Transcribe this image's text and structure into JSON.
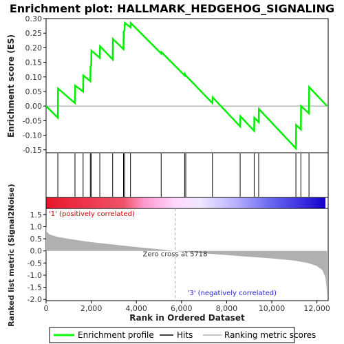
{
  "chart_data": {
    "type": "line",
    "title": "Enrichment plot: HALLMARK_HEDGEHOG_SIGNALING",
    "xlabel": "Rank in Ordered Dataset",
    "xlim": [
      0,
      12500
    ],
    "xticks": [
      0,
      2000,
      4000,
      6000,
      8000,
      10000,
      12000
    ],
    "xtick_labels": [
      "0",
      "2,000",
      "4,000",
      "6,000",
      "8,000",
      "10,000",
      "12,000"
    ],
    "es_panel": {
      "ylabel": "Enrichment score (ES)",
      "ylim": [
        -0.16,
        0.3
      ],
      "yticks": [
        -0.15,
        -0.1,
        -0.05,
        0.0,
        0.05,
        0.1,
        0.15,
        0.2,
        0.25,
        0.3
      ],
      "ytick_labels": [
        "-0.15",
        "-0.10",
        "-0.05",
        "0.00",
        "0.05",
        "0.10",
        "0.15",
        "0.20",
        "0.25",
        "0.30"
      ],
      "series_name": "Enrichment profile",
      "color": "#00ff00",
      "points": [
        [
          0,
          0.0
        ],
        [
          520,
          -0.04
        ],
        [
          530,
          0.06
        ],
        [
          1280,
          0.01
        ],
        [
          1290,
          0.07
        ],
        [
          1640,
          0.05
        ],
        [
          1650,
          0.105
        ],
        [
          1960,
          0.085
        ],
        [
          1970,
          0.135
        ],
        [
          2000,
          0.14
        ],
        [
          2010,
          0.19
        ],
        [
          2380,
          0.165
        ],
        [
          2390,
          0.205
        ],
        [
          2950,
          0.16
        ],
        [
          2960,
          0.23
        ],
        [
          3430,
          0.195
        ],
        [
          3440,
          0.255
        ],
        [
          3480,
          0.26
        ],
        [
          3490,
          0.285
        ],
        [
          3740,
          0.27
        ],
        [
          3750,
          0.285
        ],
        [
          5100,
          0.18
        ],
        [
          5110,
          0.185
        ],
        [
          6140,
          0.105
        ],
        [
          6150,
          0.11
        ],
        [
          6190,
          0.105
        ],
        [
          7370,
          0.01
        ],
        [
          7380,
          0.03
        ],
        [
          8600,
          -0.07
        ],
        [
          8610,
          -0.035
        ],
        [
          9220,
          -0.085
        ],
        [
          9230,
          -0.04
        ],
        [
          9420,
          -0.055
        ],
        [
          9430,
          -0.01
        ],
        [
          11070,
          -0.145
        ],
        [
          11080,
          -0.065
        ],
        [
          11290,
          -0.08
        ],
        [
          11300,
          0.0
        ],
        [
          11650,
          -0.025
        ],
        [
          11660,
          0.065
        ],
        [
          12450,
          0.0
        ]
      ]
    },
    "hits": [
      520,
      1280,
      1640,
      1960,
      2000,
      2380,
      2950,
      3430,
      3480,
      3740,
      5100,
      6140,
      6190,
      7370,
      8600,
      9220,
      9420,
      11070,
      11290,
      11650
    ],
    "rank_panel": {
      "ylabel": "Ranked list metric (Signal2Noise)",
      "ylim": [
        -2.05,
        1.75
      ],
      "yticks": [
        -2.0,
        -1.5,
        -1.0,
        -0.5,
        0.0,
        0.5,
        1.0,
        1.5
      ],
      "ytick_labels": [
        "-2.0",
        "-1.5",
        "-1.0",
        "-0.5",
        "0.0",
        "0.5",
        "1.0",
        "1.5"
      ],
      "series_name": "Ranking metric scores",
      "color": "#b0b0b0",
      "profile": [
        [
          0,
          1.0
        ],
        [
          30,
          0.8
        ],
        [
          150,
          0.68
        ],
        [
          500,
          0.58
        ],
        [
          1000,
          0.5
        ],
        [
          2000,
          0.36
        ],
        [
          3000,
          0.26
        ],
        [
          4000,
          0.16
        ],
        [
          5000,
          0.07
        ],
        [
          5718,
          0.0
        ],
        [
          6000,
          -0.03
        ],
        [
          7000,
          -0.1
        ],
        [
          8000,
          -0.17
        ],
        [
          9000,
          -0.24
        ],
        [
          10000,
          -0.31
        ],
        [
          11000,
          -0.4
        ],
        [
          11600,
          -0.5
        ],
        [
          12000,
          -0.62
        ],
        [
          12250,
          -0.8
        ],
        [
          12380,
          -1.1
        ],
        [
          12430,
          -1.5
        ],
        [
          12450,
          -1.9
        ]
      ],
      "zero_cross_label": "Zero cross at 5718",
      "zero_cross_x": 5718,
      "pos_label": "'1' (positively correlated)",
      "neg_label": "'3' (negatively correlated)"
    },
    "legend": {
      "placement": "bottom",
      "items": [
        {
          "label": "Enrichment profile",
          "color": "#00ff00"
        },
        {
          "label": "Hits",
          "color": "#000000"
        },
        {
          "label": "Ranking metric scores",
          "color": "#b0b0b0"
        }
      ]
    }
  }
}
